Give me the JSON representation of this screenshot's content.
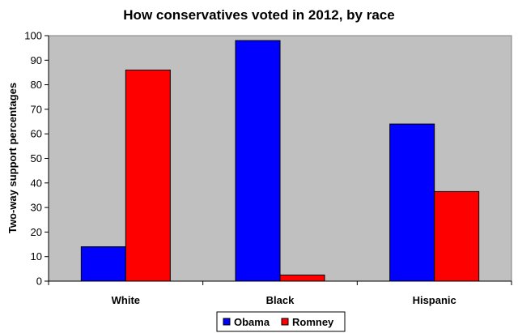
{
  "chart_data": {
    "type": "bar",
    "title": "How conservatives voted in 2012, by race",
    "ylabel": "Two-way support percentages",
    "xlabel": "",
    "categories": [
      "White",
      "Black",
      "Hispanic"
    ],
    "series": [
      {
        "name": "Obama",
        "color": "#0000FF",
        "values": [
          14,
          98,
          64
        ]
      },
      {
        "name": "Romney",
        "color": "#FF0000",
        "values": [
          86,
          2.5,
          36.5
        ]
      }
    ],
    "ylim": [
      0,
      100
    ],
    "yticks": [
      0,
      10,
      20,
      30,
      40,
      50,
      60,
      70,
      80,
      90,
      100
    ],
    "grid": false,
    "legend_position": "bottom",
    "plot_background": "#C0C0C0"
  }
}
